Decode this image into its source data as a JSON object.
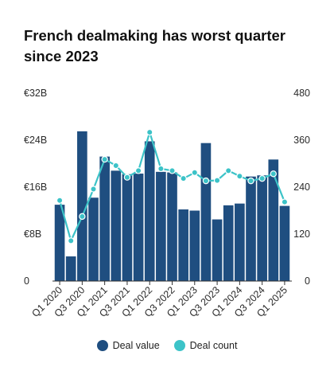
{
  "title": "French dealmaking has worst quarter since 2023",
  "colors": {
    "bar": "#1f4e80",
    "line": "#3cc3c8",
    "marker_edge": "#ffffff",
    "baseline": "#333333"
  },
  "legend": {
    "bar_label": "Deal value",
    "line_label": "Deal count",
    "position": "bottom-center"
  },
  "chart_data": {
    "type": "bar+line",
    "grid": false,
    "categories": [
      "Q1 2020",
      "Q2 2020",
      "Q3 2020",
      "Q4 2020",
      "Q1 2021",
      "Q2 2021",
      "Q3 2021",
      "Q4 2021",
      "Q1 2022",
      "Q2 2022",
      "Q3 2022",
      "Q4 2022",
      "Q1 2023",
      "Q2 2023",
      "Q3 2023",
      "Q4 2023",
      "Q1 2024",
      "Q2 2024",
      "Q3 2024",
      "Q4 2024",
      "Q1 2025"
    ],
    "x_tick_labels": [
      "Q1 2020",
      "Q3 2020",
      "Q1 2021",
      "Q3 2021",
      "Q1 2022",
      "Q3 2022",
      "Q1 2023",
      "Q3 2023",
      "Q1 2024",
      "Q3 2024",
      "Q1 2025"
    ],
    "series": [
      {
        "name": "Deal value",
        "type": "bar",
        "axis": "left",
        "values": [
          13,
          4.2,
          25.5,
          14.2,
          21.2,
          18.8,
          18.2,
          18.3,
          23.8,
          18.6,
          18.5,
          12.2,
          12,
          23.5,
          10.5,
          12.9,
          13.2,
          17.8,
          18,
          20.7,
          12.8
        ]
      },
      {
        "name": "Deal count",
        "type": "line",
        "axis": "right",
        "values": [
          206,
          103,
          165,
          235,
          311,
          295,
          265,
          282,
          380,
          287,
          282,
          262,
          277,
          256,
          257,
          282,
          268,
          256,
          262,
          274,
          202
        ]
      }
    ],
    "y_left": {
      "ylim": [
        0,
        32
      ],
      "ticks": [
        "0",
        "€8B",
        "€16B",
        "€24B",
        "€32B"
      ],
      "tick_values": [
        0,
        8,
        16,
        24,
        32
      ]
    },
    "y_right": {
      "ylim": [
        0,
        480
      ],
      "ticks": [
        "0",
        "120",
        "240",
        "360",
        "480"
      ],
      "tick_values": [
        0,
        120,
        240,
        360,
        480
      ]
    }
  }
}
